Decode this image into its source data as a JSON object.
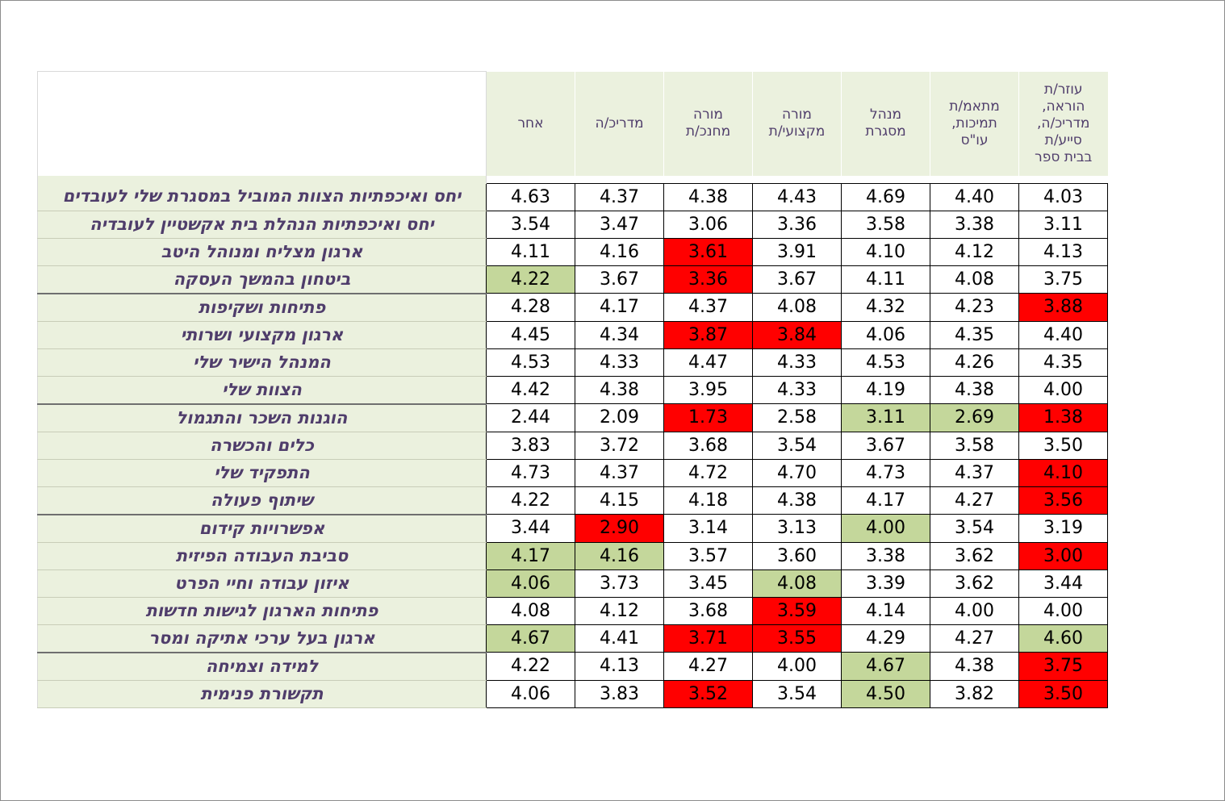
{
  "chart_data": {
    "type": "table",
    "columns": [
      "אחר",
      "מדריכ/ה",
      "מורה מחנכ/ת",
      "מורה מקצועי/ת",
      "מנהל מסגרת",
      "מתאמ/ת תמיכות, עו\"ס",
      "עוזר/ת הוראה, מדריכ/ה, סייע/ת בבית ספר"
    ],
    "header_lines": [
      [
        "אחר"
      ],
      [
        "מדריכ/ה"
      ],
      [
        "מורה",
        "מחנכ/ת"
      ],
      [
        "מורה",
        "מקצועי/ת"
      ],
      [
        "מנהל",
        "מסגרת"
      ],
      [
        "מתאמ/ת",
        "תמיכות,",
        "עו\"ס"
      ],
      [
        "עוזר/ת",
        "הוראה,",
        "מדריכ/ה,",
        "סייע/ת",
        "בבית ספר"
      ]
    ],
    "rows": [
      {
        "label": "יחס ואיכפתיות הצוות המוביל במסגרת שלי לעובדים",
        "values": [
          "4.63",
          "4.37",
          "4.38",
          "4.43",
          "4.69",
          "4.40",
          "4.03"
        ],
        "highlight": [
          "",
          "",
          "",
          "",
          "",
          "",
          ""
        ]
      },
      {
        "label": "יחס ואיכפתיות הנהלת בית אקשטיין לעובדיה",
        "values": [
          "3.54",
          "3.47",
          "3.06",
          "3.36",
          "3.58",
          "3.38",
          "3.11"
        ],
        "highlight": [
          "",
          "",
          "",
          "",
          "",
          "",
          ""
        ]
      },
      {
        "label": "ארגון מצליח ומנוהל היטב",
        "values": [
          "4.11",
          "4.16",
          "3.61",
          "3.91",
          "4.10",
          "4.12",
          "4.13"
        ],
        "highlight": [
          "",
          "",
          "red",
          "",
          "",
          "",
          ""
        ]
      },
      {
        "label": "ביטחון בהמשך העסקה",
        "values": [
          "4.22",
          "3.67",
          "3.36",
          "3.67",
          "4.11",
          "4.08",
          "3.75"
        ],
        "highlight": [
          "green",
          "",
          "red",
          "",
          "",
          "",
          ""
        ]
      },
      {
        "label": "פתיחות ושקיפות",
        "values": [
          "4.28",
          "4.17",
          "4.37",
          "4.08",
          "4.32",
          "4.23",
          "3.88"
        ],
        "highlight": [
          "",
          "",
          "",
          "",
          "",
          "",
          "red"
        ]
      },
      {
        "label": "ארגון מקצועי ושרותי",
        "values": [
          "4.45",
          "4.34",
          "3.87",
          "3.84",
          "4.06",
          "4.35",
          "4.40"
        ],
        "highlight": [
          "",
          "",
          "red",
          "red",
          "",
          "",
          ""
        ]
      },
      {
        "label": "המנהל הישיר שלי",
        "values": [
          "4.53",
          "4.33",
          "4.47",
          "4.33",
          "4.53",
          "4.26",
          "4.35"
        ],
        "highlight": [
          "",
          "",
          "",
          "",
          "",
          "",
          ""
        ]
      },
      {
        "label": "הצוות שלי",
        "values": [
          "4.42",
          "4.38",
          "3.95",
          "4.33",
          "4.19",
          "4.38",
          "4.00"
        ],
        "highlight": [
          "",
          "",
          "",
          "",
          "",
          "",
          ""
        ]
      },
      {
        "label": "הוגנות השכר והתגמול",
        "values": [
          "2.44",
          "2.09",
          "1.73",
          "2.58",
          "3.11",
          "2.69",
          "1.38"
        ],
        "highlight": [
          "",
          "",
          "red",
          "",
          "green",
          "green",
          "red"
        ]
      },
      {
        "label": "כלים והכשרה",
        "values": [
          "3.83",
          "3.72",
          "3.68",
          "3.54",
          "3.67",
          "3.58",
          "3.50"
        ],
        "highlight": [
          "",
          "",
          "",
          "",
          "",
          "",
          ""
        ]
      },
      {
        "label": "התפקיד שלי",
        "values": [
          "4.73",
          "4.37",
          "4.72",
          "4.70",
          "4.73",
          "4.37",
          "4.10"
        ],
        "highlight": [
          "",
          "",
          "",
          "",
          "",
          "",
          "red"
        ]
      },
      {
        "label": "שיתוף פעולה",
        "values": [
          "4.22",
          "4.15",
          "4.18",
          "4.38",
          "4.17",
          "4.27",
          "3.56"
        ],
        "highlight": [
          "",
          "",
          "",
          "",
          "",
          "",
          "red"
        ]
      },
      {
        "label": "אפשרויות קידום",
        "values": [
          "3.44",
          "2.90",
          "3.14",
          "3.13",
          "4.00",
          "3.54",
          "3.19"
        ],
        "highlight": [
          "",
          "red",
          "",
          "",
          "green",
          "",
          ""
        ]
      },
      {
        "label": "סביבת העבודה הפיזית",
        "values": [
          "4.17",
          "4.16",
          "3.57",
          "3.60",
          "3.38",
          "3.62",
          "3.00"
        ],
        "highlight": [
          "green",
          "green",
          "",
          "",
          "",
          "",
          "red"
        ]
      },
      {
        "label": "איזון עבודה וחיי הפרט",
        "values": [
          "4.06",
          "3.73",
          "3.45",
          "4.08",
          "3.39",
          "3.62",
          "3.44"
        ],
        "highlight": [
          "green",
          "",
          "",
          "green",
          "",
          "",
          ""
        ]
      },
      {
        "label": "פתיחות הארגון לגישות חדשות",
        "values": [
          "4.08",
          "4.12",
          "3.68",
          "3.59",
          "4.14",
          "4.00",
          "4.00"
        ],
        "highlight": [
          "",
          "",
          "",
          "red",
          "",
          "",
          ""
        ]
      },
      {
        "label": "ארגון בעל ערכי אתיקה ומסר",
        "values": [
          "4.67",
          "4.41",
          "3.71",
          "3.55",
          "4.29",
          "4.27",
          "4.60"
        ],
        "highlight": [
          "green",
          "",
          "red",
          "red",
          "",
          "",
          "green"
        ]
      },
      {
        "label": "למידה וצמיחה",
        "values": [
          "4.22",
          "4.13",
          "4.27",
          "4.00",
          "4.67",
          "4.38",
          "3.75"
        ],
        "highlight": [
          "",
          "",
          "",
          "",
          "green",
          "",
          "red"
        ]
      },
      {
        "label": "תקשורת פנימית",
        "values": [
          "4.06",
          "3.83",
          "3.52",
          "3.54",
          "4.50",
          "3.82",
          "3.50"
        ],
        "highlight": [
          "",
          "",
          "red",
          "",
          "green",
          "",
          "red"
        ]
      }
    ],
    "colors": {
      "red": "#ff0000",
      "green": "#c4d79b",
      "label_bg": "#ebf1de",
      "label_text": "#4f3d6b"
    }
  }
}
